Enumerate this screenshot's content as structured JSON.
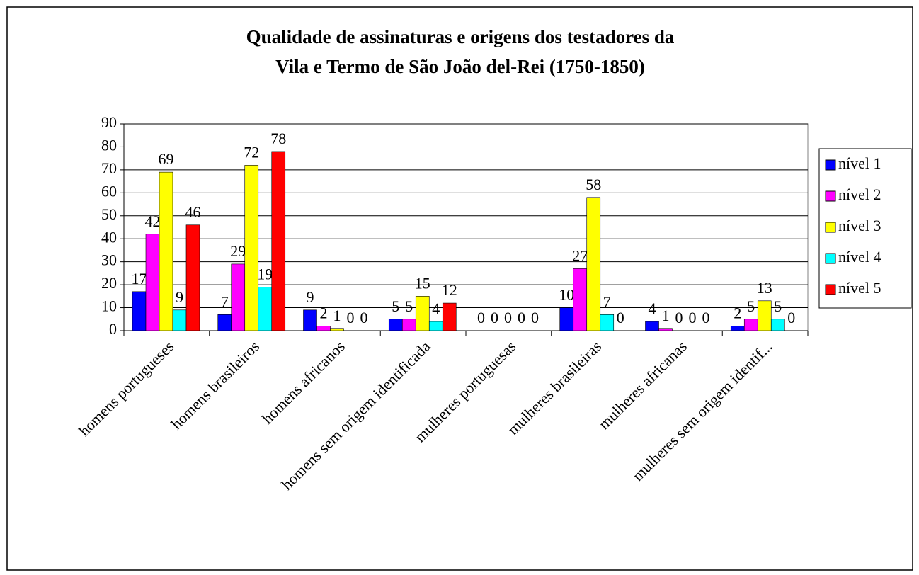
{
  "chart_data": {
    "type": "bar",
    "title": [
      "Qualidade de assinaturas e origens dos testadores da",
      "Vila e Termo de São João del-Rei (1750-1850)"
    ],
    "categories": [
      "homens portugueses",
      "homens brasileiros",
      "homens africanos",
      "homens sem origem identificada",
      "mulheres portuguesas",
      "mulheres brasileiras",
      "mulheres africanas",
      "mulheres sem origem identif..."
    ],
    "series": [
      {
        "name": "nível 1",
        "color": "#0000ff",
        "values": [
          17,
          7,
          9,
          5,
          0,
          10,
          4,
          2
        ]
      },
      {
        "name": "nível 2",
        "color": "#ff00ff",
        "values": [
          42,
          29,
          2,
          5,
          0,
          27,
          1,
          5
        ]
      },
      {
        "name": "nível 3",
        "color": "#ffff00",
        "values": [
          69,
          72,
          1,
          15,
          0,
          58,
          0,
          13
        ]
      },
      {
        "name": "nível 4",
        "color": "#00ffff",
        "values": [
          9,
          19,
          0,
          4,
          0,
          7,
          0,
          5
        ]
      },
      {
        "name": "nível 5",
        "color": "#ff0000",
        "values": [
          46,
          78,
          0,
          12,
          0,
          0,
          0,
          0
        ]
      }
    ],
    "ylim": [
      0,
      90
    ],
    "yticks": [
      0,
      10,
      20,
      30,
      40,
      50,
      60,
      70,
      80,
      90
    ],
    "grid": true,
    "legend": "right"
  }
}
